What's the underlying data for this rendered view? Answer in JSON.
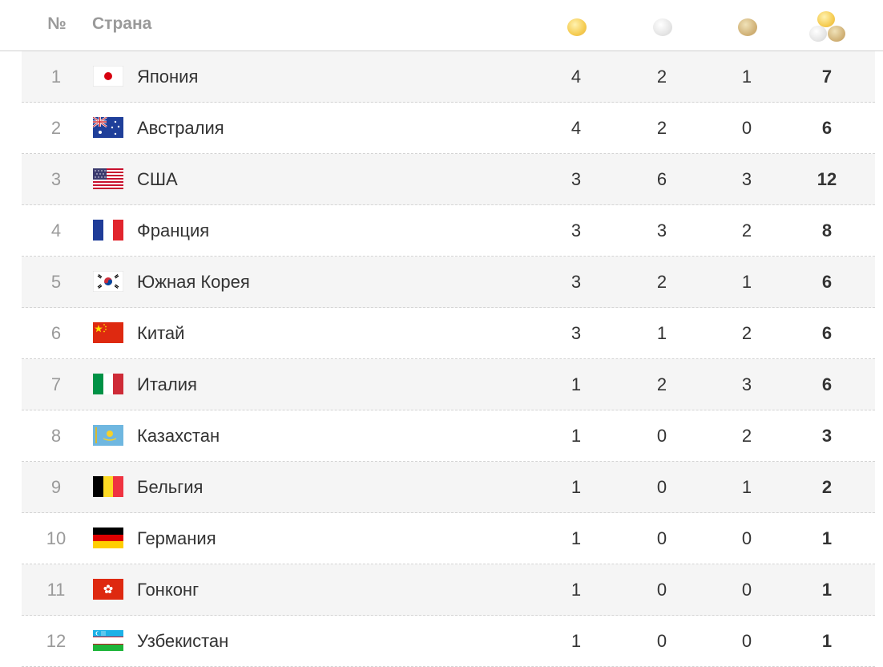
{
  "header": {
    "rank_label": "№",
    "country_label": "Страна",
    "gold_icon": "gold-medal-icon",
    "silver_icon": "silver-medal-icon",
    "bronze_icon": "bronze-medal-icon",
    "total_icon": "total-medals-icon"
  },
  "colors": {
    "gold": "#f5cc52",
    "silver": "#e6e6e6",
    "bronze": "#d2b47a",
    "row_alt": "#f5f5f5"
  },
  "rows": [
    {
      "rank": "1",
      "country": "Япония",
      "flag": "japan-flag-icon",
      "gold": "4",
      "silver": "2",
      "bronze": "1",
      "total": "7"
    },
    {
      "rank": "2",
      "country": "Австралия",
      "flag": "australia-flag-icon",
      "gold": "4",
      "silver": "2",
      "bronze": "0",
      "total": "6"
    },
    {
      "rank": "3",
      "country": "США",
      "flag": "usa-flag-icon",
      "gold": "3",
      "silver": "6",
      "bronze": "3",
      "total": "12"
    },
    {
      "rank": "4",
      "country": "Франция",
      "flag": "france-flag-icon",
      "gold": "3",
      "silver": "3",
      "bronze": "2",
      "total": "8"
    },
    {
      "rank": "5",
      "country": "Южная Корея",
      "flag": "south-korea-flag-icon",
      "gold": "3",
      "silver": "2",
      "bronze": "1",
      "total": "6"
    },
    {
      "rank": "6",
      "country": "Китай",
      "flag": "china-flag-icon",
      "gold": "3",
      "silver": "1",
      "bronze": "2",
      "total": "6"
    },
    {
      "rank": "7",
      "country": "Италия",
      "flag": "italy-flag-icon",
      "gold": "1",
      "silver": "2",
      "bronze": "3",
      "total": "6"
    },
    {
      "rank": "8",
      "country": "Казахстан",
      "flag": "kazakhstan-flag-icon",
      "gold": "1",
      "silver": "0",
      "bronze": "2",
      "total": "3"
    },
    {
      "rank": "9",
      "country": "Бельгия",
      "flag": "belgium-flag-icon",
      "gold": "1",
      "silver": "0",
      "bronze": "1",
      "total": "2"
    },
    {
      "rank": "10",
      "country": "Германия",
      "flag": "germany-flag-icon",
      "gold": "1",
      "silver": "0",
      "bronze": "0",
      "total": "1"
    },
    {
      "rank": "11",
      "country": "Гонконг",
      "flag": "hong-kong-flag-icon",
      "gold": "1",
      "silver": "0",
      "bronze": "0",
      "total": "1"
    },
    {
      "rank": "12",
      "country": "Узбекистан",
      "flag": "uzbekistan-flag-icon",
      "gold": "1",
      "silver": "0",
      "bronze": "0",
      "total": "1"
    }
  ]
}
